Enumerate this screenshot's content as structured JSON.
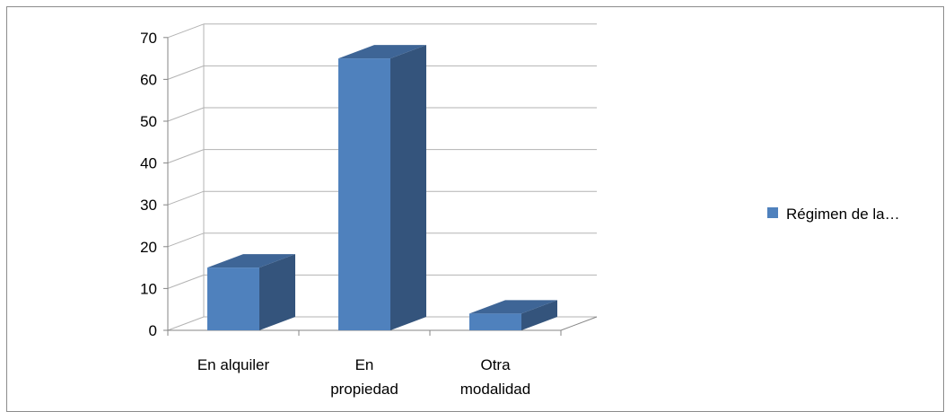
{
  "chart_data": {
    "type": "bar",
    "title": "",
    "xlabel": "",
    "ylabel": "",
    "categories": [
      [
        "En alquiler"
      ],
      [
        "En",
        "propiedad"
      ],
      [
        "Otra",
        "modalidad"
      ]
    ],
    "series": [
      {
        "name": "Régimen de la…",
        "values": [
          15,
          65,
          4
        ],
        "color": "#4f81bd"
      }
    ],
    "ylim": [
      0,
      70
    ],
    "yticks": [
      0,
      10,
      20,
      30,
      40,
      50,
      60,
      70
    ],
    "grid": true,
    "legend": "right",
    "colors": {
      "front": "#4f81bd",
      "side": "#34547c",
      "top": "#3e6596",
      "grid": "#b3b3b3",
      "axis": "#868686"
    }
  }
}
